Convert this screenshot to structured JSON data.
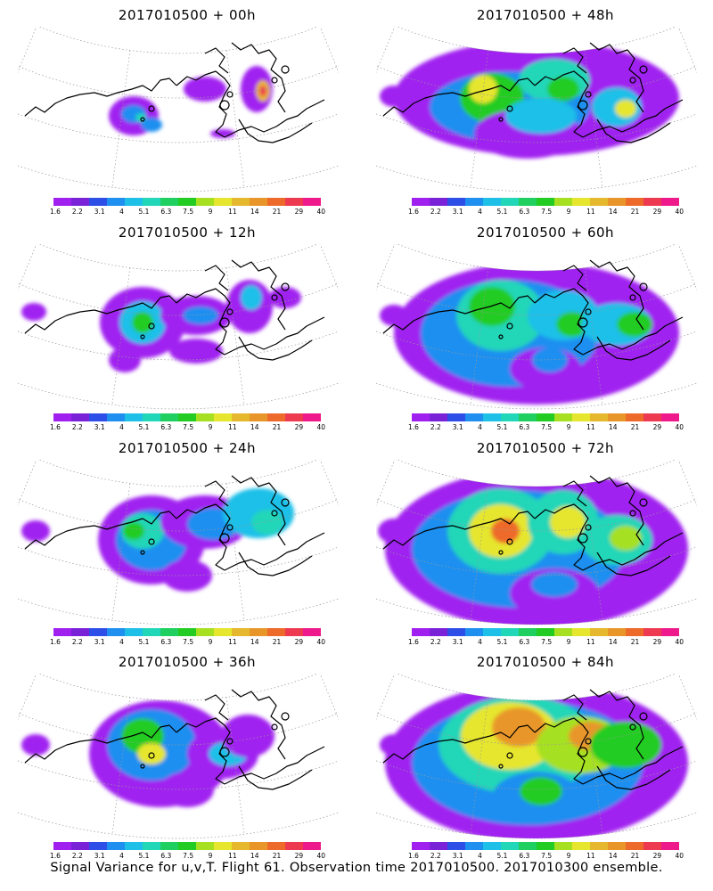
{
  "panels": [
    {
      "title": "2017010500  + 00h",
      "lead": "00h"
    },
    {
      "title": "2017010500  + 48h",
      "lead": "48h"
    },
    {
      "title": "2017010500  + 12h",
      "lead": "12h"
    },
    {
      "title": "2017010500  + 60h",
      "lead": "60h"
    },
    {
      "title": "2017010500  + 24h",
      "lead": "24h"
    },
    {
      "title": "2017010500  + 72h",
      "lead": "72h"
    },
    {
      "title": "2017010500  + 36h",
      "lead": "36h"
    },
    {
      "title": "2017010500  + 84h",
      "lead": "84h"
    }
  ],
  "colorbar": {
    "colors": [
      "#a020f0",
      "#7a22d8",
      "#2e4ee8",
      "#1f8ff0",
      "#1fc0e8",
      "#22d6b8",
      "#1fd060",
      "#22cc22",
      "#a6e020",
      "#e6e62e",
      "#e6b82e",
      "#e8962a",
      "#ee6a2a",
      "#ee3a50",
      "#ee1a8c"
    ],
    "labels": [
      "1.6",
      "2.2",
      "3.1",
      "4",
      "5.1",
      "6.3",
      "7.5",
      "9",
      "11",
      "14",
      "21",
      "29",
      "40"
    ]
  },
  "caption": "Signal Variance for u,v,T. Flight 61. Observation time 2017010500. 2017010300 ensemble."
}
